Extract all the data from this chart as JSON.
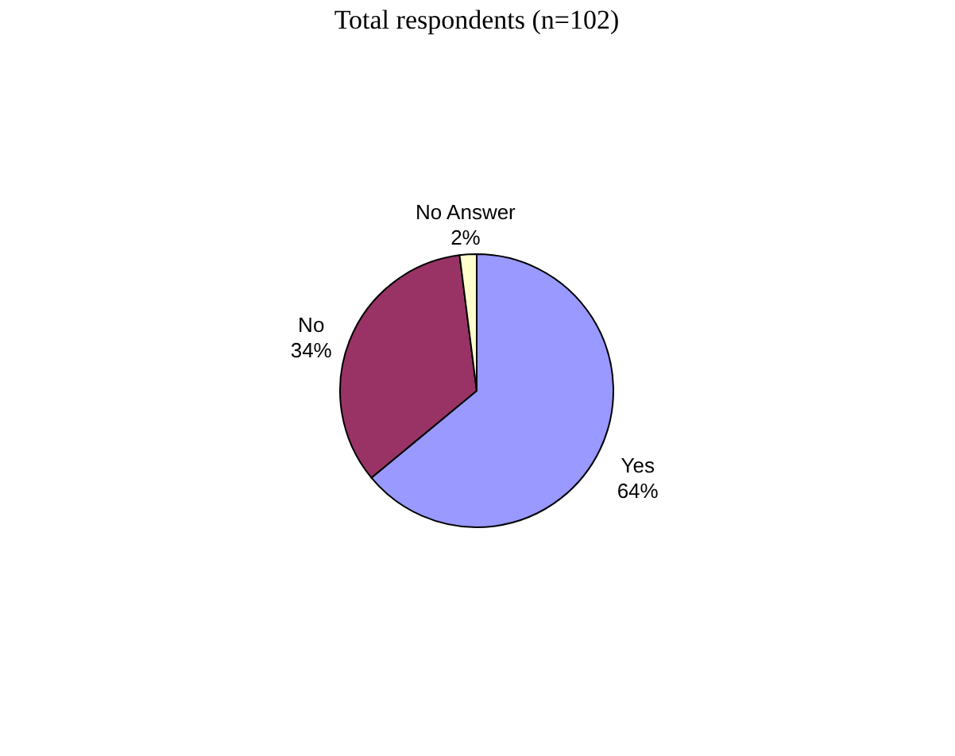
{
  "chart_data": {
    "type": "pie",
    "title": "Total respondents (n=102)",
    "categories": [
      "Yes",
      "No",
      "No Answer"
    ],
    "values": [
      64,
      34,
      2
    ],
    "colors": [
      "#9999ff",
      "#993366",
      "#ffffcc"
    ],
    "value_labels": [
      "64%",
      "34%",
      "2%"
    ],
    "legend": false
  }
}
